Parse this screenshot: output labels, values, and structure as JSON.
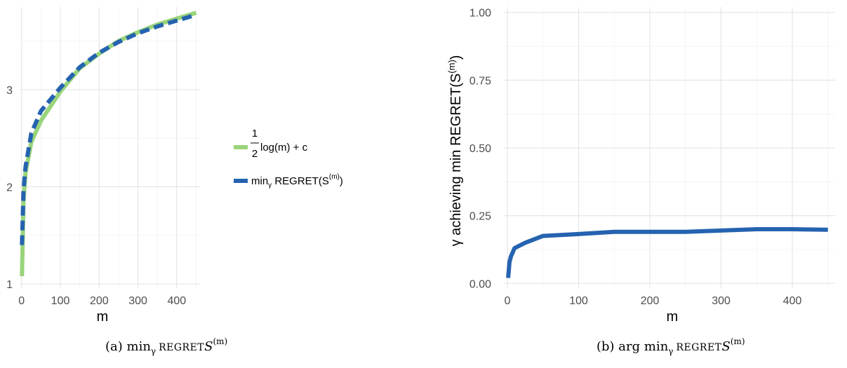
{
  "chart_data": [
    {
      "type": "line",
      "xlabel": "m",
      "ylabel": "",
      "xlim": [
        -5,
        460
      ],
      "ylim": [
        0.95,
        3.85
      ],
      "x_ticks": [
        0,
        100,
        200,
        300,
        400
      ],
      "y_ticks": [
        1,
        2,
        3
      ],
      "x_tick_labels": [
        "0",
        "100",
        "200",
        "300",
        "400"
      ],
      "y_tick_labels": [
        "1",
        "2",
        "3"
      ],
      "grid": true,
      "legend_position": "right",
      "series": [
        {
          "name": "1/2 log(m) + c",
          "legend_fraction_num": "1",
          "legend_fraction_den": "2",
          "legend_rest": "log(m) + c",
          "style": "solid",
          "color": "#99d47a",
          "x": [
            1,
            5,
            10,
            25,
            50,
            100,
            150,
            200,
            250,
            300,
            350,
            400,
            450
          ],
          "y": [
            1.08,
            1.85,
            2.14,
            2.46,
            2.68,
            2.98,
            3.22,
            3.37,
            3.5,
            3.59,
            3.67,
            3.73,
            3.79
          ]
        },
        {
          "name": "min_γ REGRET(S^(m))",
          "legend_main": "min",
          "legend_sub": "γ",
          "legend_mid": " REGRET(S",
          "legend_sup": "(m)",
          "legend_end": ")",
          "style": "dashed",
          "color": "#2563b0",
          "x": [
            1,
            5,
            10,
            25,
            50,
            100,
            150,
            200,
            250,
            300,
            350,
            400,
            450
          ],
          "y": [
            1.4,
            1.96,
            2.2,
            2.55,
            2.78,
            3.02,
            3.23,
            3.38,
            3.49,
            3.58,
            3.65,
            3.71,
            3.77
          ]
        }
      ],
      "caption": {
        "prefix": "(a) min",
        "sub": "γ",
        "word": "REGRET",
        "var": "S",
        "sup": "(m)"
      }
    },
    {
      "type": "line",
      "xlabel": "m",
      "ylabel": "γ achieving min REGRET(S",
      "ylabel_sup": "(m)",
      "ylabel_end": ")",
      "xlim": [
        -5,
        460
      ],
      "ylim": [
        -0.02,
        1.02
      ],
      "x_ticks": [
        0,
        100,
        200,
        300,
        400
      ],
      "y_ticks": [
        0,
        0.25,
        0.5,
        0.75,
        1
      ],
      "x_tick_labels": [
        "0",
        "100",
        "200",
        "300",
        "400"
      ],
      "y_tick_labels": [
        "0.00",
        "0.25",
        "0.50",
        "0.75",
        "1.00"
      ],
      "grid": true,
      "series": [
        {
          "style": "solid",
          "color": "#2563b0",
          "x": [
            1,
            3,
            5,
            10,
            25,
            50,
            100,
            150,
            200,
            250,
            300,
            350,
            400,
            450
          ],
          "y": [
            0.02,
            0.08,
            0.1,
            0.13,
            0.15,
            0.175,
            0.182,
            0.19,
            0.19,
            0.19,
            0.195,
            0.2,
            0.2,
            0.198
          ]
        }
      ],
      "caption": {
        "prefix": "(b) arg min",
        "sub": "γ",
        "word": "REGRET",
        "var": "S",
        "sup": "(m)"
      }
    }
  ]
}
